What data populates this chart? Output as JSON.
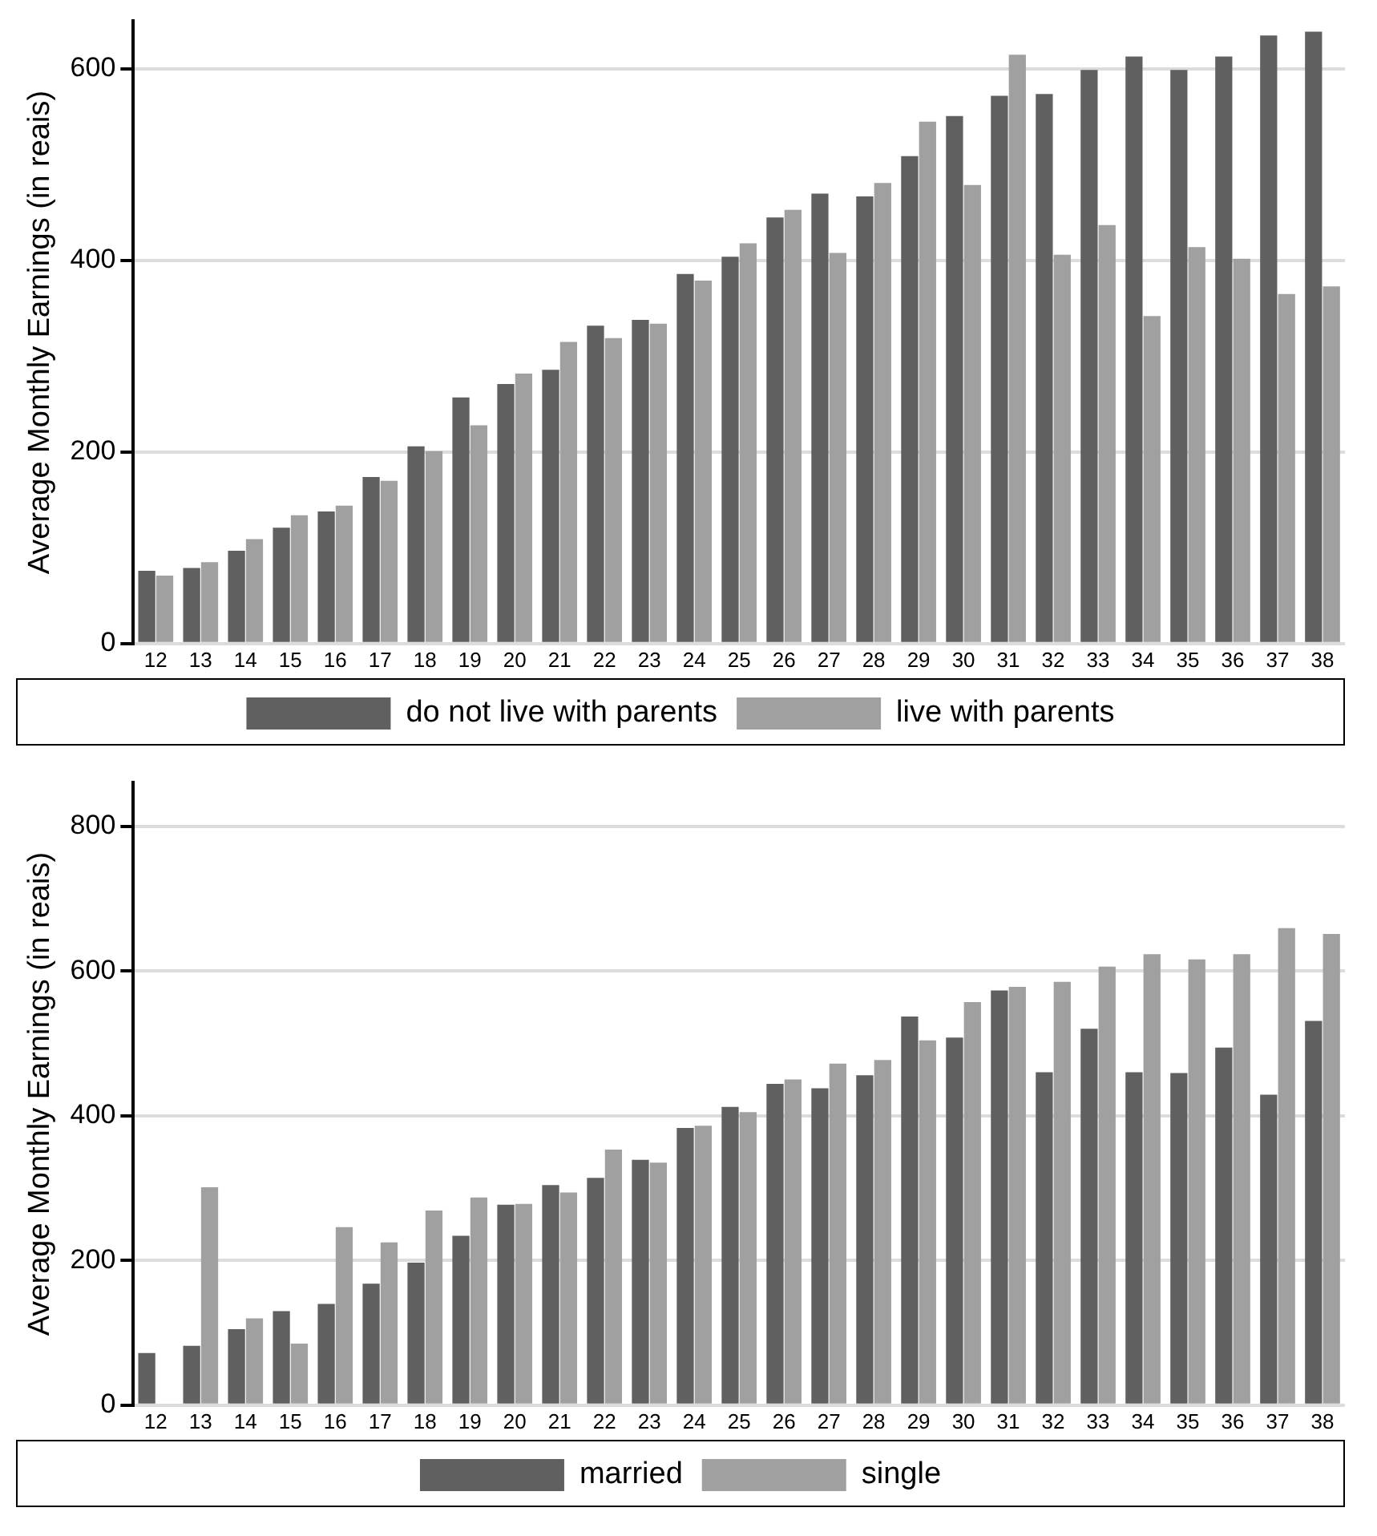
{
  "chart_data": [
    {
      "type": "bar",
      "ylabel": "Average Monthly Earnings (in reais)",
      "categories": [
        "12",
        "13",
        "14",
        "15",
        "16",
        "17",
        "18",
        "19",
        "20",
        "21",
        "22",
        "23",
        "24",
        "25",
        "26",
        "27",
        "28",
        "29",
        "30",
        "31",
        "32",
        "33",
        "34",
        "35",
        "36",
        "37",
        "38"
      ],
      "ylim": [
        0,
        650
      ],
      "yticks": [
        0,
        200,
        400,
        600
      ],
      "grid": "y",
      "legend": "bottom",
      "series": [
        {
          "name": "do not live with parents",
          "color": "#606060",
          "values": [
            76,
            79,
            97,
            121,
            138,
            174,
            206,
            257,
            271,
            286,
            332,
            338,
            386,
            404,
            445,
            470,
            467,
            509,
            551,
            572,
            574,
            599,
            613,
            599,
            613,
            635,
            639
          ]
        },
        {
          "name": "live with parents",
          "color": "#a0a0a0",
          "values": [
            71,
            85,
            109,
            134,
            144,
            170,
            201,
            228,
            282,
            315,
            319,
            334,
            379,
            418,
            453,
            408,
            481,
            545,
            479,
            615,
            406,
            437,
            342,
            414,
            402,
            365,
            373
          ]
        }
      ]
    },
    {
      "type": "bar",
      "ylabel": "Average Monthly Earnings (in reais)",
      "categories": [
        "12",
        "13",
        "14",
        "15",
        "16",
        "17",
        "18",
        "19",
        "20",
        "21",
        "22",
        "23",
        "24",
        "25",
        "26",
        "27",
        "28",
        "29",
        "30",
        "31",
        "32",
        "33",
        "34",
        "35",
        "36",
        "37",
        "38"
      ],
      "ylim": [
        0,
        860
      ],
      "yticks": [
        0,
        200,
        400,
        600,
        800
      ],
      "grid": "y",
      "legend": "bottom",
      "series": [
        {
          "name": "married",
          "color": "#606060",
          "values": [
            72,
            82,
            105,
            130,
            140,
            168,
            197,
            234,
            277,
            304,
            314,
            339,
            383,
            412,
            444,
            438,
            456,
            537,
            508,
            573,
            460,
            520,
            460,
            459,
            494,
            429,
            531
          ]
        },
        {
          "name": "single",
          "color": "#a0a0a0",
          "values": [
            null,
            301,
            120,
            85,
            246,
            225,
            269,
            287,
            278,
            294,
            353,
            335,
            386,
            405,
            450,
            472,
            477,
            504,
            557,
            578,
            585,
            606,
            623,
            616,
            623,
            659,
            651
          ]
        }
      ]
    }
  ]
}
